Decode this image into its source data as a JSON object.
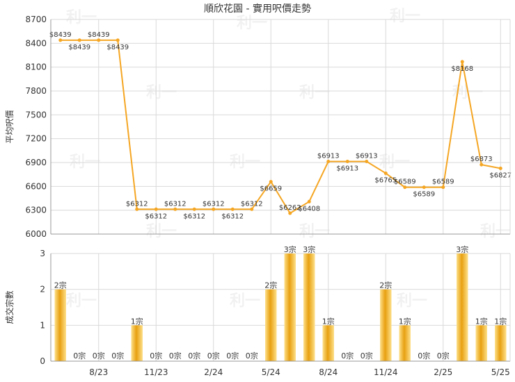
{
  "title": "順欣花園 - 實用呎價走勢",
  "watermark": "利一",
  "colors": {
    "line": "#f5a623",
    "bar_light": "#fde08a",
    "bar_dark": "#e8a010",
    "grid": "#d9d9d9",
    "axis": "#999999"
  },
  "chart_data": [
    {
      "type": "line",
      "ylabel": "平均呎價",
      "ylim": [
        6000,
        8700
      ],
      "yticks": [
        6000,
        6300,
        6600,
        6900,
        7200,
        7500,
        7800,
        8100,
        8400,
        8700
      ],
      "grid": true,
      "series": [
        {
          "values": [
            8439,
            8439,
            8439,
            8439,
            6312,
            6312,
            6312,
            6312,
            6312,
            6312,
            6312,
            6659,
            6262,
            6408,
            6913,
            6913,
            6913,
            6765,
            6589,
            6589,
            6589,
            8168,
            6873,
            6827
          ],
          "point_labels": [
            "$8439",
            "$8439",
            "$8439",
            "$8439",
            "$6312",
            "$6312",
            "$6312",
            "$6312",
            "$6312",
            "$6312",
            "$6312",
            "$6659",
            "$6262",
            "$6408",
            "$6913",
            "$6913",
            "$6913",
            "$6765",
            "$6589",
            "$6589",
            "$6589",
            "$8168",
            "$6873",
            "$6827"
          ]
        }
      ]
    },
    {
      "type": "bar",
      "ylabel": "成交宗數",
      "ylim": [
        0,
        3
      ],
      "yticks": [
        0,
        1,
        2,
        3
      ],
      "grid": true,
      "values": [
        2,
        0,
        0,
        0,
        1,
        0,
        0,
        0,
        0,
        0,
        0,
        2,
        3,
        3,
        1,
        0,
        0,
        2,
        1,
        0,
        0,
        3,
        1,
        1
      ],
      "bar_labels": [
        "2宗",
        "0宗",
        "0宗",
        "0宗",
        "1宗",
        "0宗",
        "0宗",
        "0宗",
        "0宗",
        "0宗",
        "0宗",
        "2宗",
        "3宗",
        "3宗",
        "1宗",
        "0宗",
        "0宗",
        "2宗",
        "1宗",
        "0宗",
        "0宗",
        "3宗",
        "1宗",
        "1宗"
      ],
      "x_tick_labels": [
        "8/23",
        "11/23",
        "2/24",
        "5/24",
        "8/24",
        "11/24",
        "2/25",
        "5/25"
      ]
    }
  ]
}
